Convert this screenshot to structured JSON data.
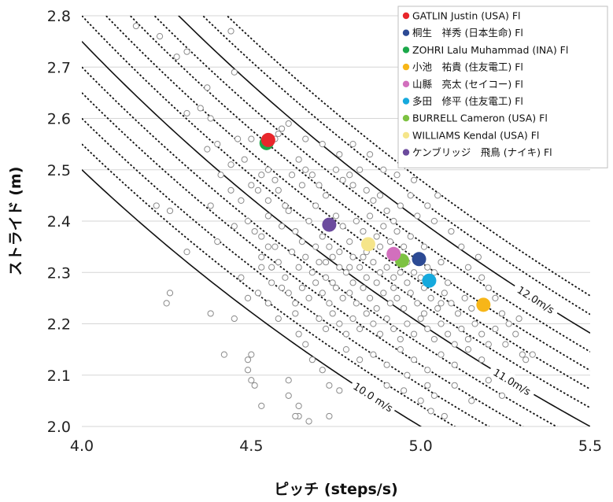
{
  "chart_data": {
    "type": "scatter",
    "title": "",
    "xlabel": "ピッチ (steps/s)",
    "ylabel": "ストライド (m)",
    "xlim": [
      4.0,
      5.5
    ],
    "ylim": [
      2.0,
      2.8
    ],
    "x_ticks": [
      "4.0",
      "4.5",
      "5.0",
      "5.5"
    ],
    "y_ticks": [
      "2.0",
      "2.1",
      "2.2",
      "2.3",
      "2.4",
      "2.5",
      "2.6",
      "2.7",
      "2.8"
    ],
    "grid": "horizontal",
    "legend_position": "top-right",
    "iso_speed_lines": {
      "solid_speeds": [
        10.0,
        11.0,
        12.0
      ],
      "dotted_speeds": [
        10.2,
        10.4,
        10.6,
        10.8,
        11.2,
        11.4,
        11.6,
        11.8,
        12.2,
        12.4
      ],
      "labels": [
        {
          "text": "10.0 m/s",
          "speed": 10.0,
          "x": 4.86
        },
        {
          "text": "11.0m/s",
          "speed": 11.0,
          "x": 5.27
        },
        {
          "text": "12.0m/s",
          "speed": 12.0,
          "x": 5.34
        }
      ]
    },
    "series": [
      {
        "name": "GATLIN Justin (USA) Fl",
        "color": "#e8262b",
        "x": 4.55,
        "y": 2.558
      },
      {
        "name": "桐生　祥秀 (日本生命) Fl",
        "color": "#2c4a94",
        "x": 4.995,
        "y": 2.326
      },
      {
        "name": "ZOHRI Lalu Muhammad (INA) Fl",
        "color": "#1ba84a",
        "x": 4.545,
        "y": 2.552
      },
      {
        "name": "小池　祐貴 (住友電工) Fl",
        "color": "#f7b618",
        "x": 5.185,
        "y": 2.237
      },
      {
        "name": "山縣　亮太 (セイコー) Fl",
        "color": "#d26fbd",
        "x": 4.92,
        "y": 2.336
      },
      {
        "name": "多田　修平 (住友電工) Fl",
        "color": "#16a9dd",
        "x": 5.025,
        "y": 2.284
      },
      {
        "name": "BURRELL Cameron (USA) Fl",
        "color": "#7dc242",
        "x": 4.945,
        "y": 2.323
      },
      {
        "name": "WILLIAMS Kendal (USA) Fl",
        "color": "#f5e58a",
        "x": 4.845,
        "y": 2.355
      },
      {
        "name": "ケンブリッジ　飛鳥 (ナイキ) Fl",
        "color": "#6b4a9d",
        "x": 4.73,
        "y": 2.393
      }
    ],
    "background_points": [
      [
        4.16,
        2.78
      ],
      [
        4.23,
        2.76
      ],
      [
        4.28,
        2.72
      ],
      [
        4.31,
        2.73
      ],
      [
        4.44,
        2.77
      ],
      [
        4.45,
        2.69
      ],
      [
        4.37,
        2.66
      ],
      [
        4.31,
        2.61
      ],
      [
        4.35,
        2.62
      ],
      [
        4.38,
        2.6
      ],
      [
        4.37,
        2.54
      ],
      [
        4.4,
        2.55
      ],
      [
        4.44,
        2.51
      ],
      [
        4.48,
        2.52
      ],
      [
        4.5,
        2.56
      ],
      [
        4.46,
        2.56
      ],
      [
        4.55,
        2.5
      ],
      [
        4.57,
        2.56
      ],
      [
        4.58,
        2.57
      ],
      [
        4.59,
        2.58
      ],
      [
        4.41,
        2.49
      ],
      [
        4.44,
        2.46
      ],
      [
        4.47,
        2.44
      ],
      [
        4.5,
        2.47
      ],
      [
        4.52,
        2.46
      ],
      [
        4.53,
        2.49
      ],
      [
        4.55,
        2.44
      ],
      [
        4.57,
        2.48
      ],
      [
        4.58,
        2.46
      ],
      [
        4.6,
        2.43
      ],
      [
        4.62,
        2.49
      ],
      [
        4.64,
        2.52
      ],
      [
        4.65,
        2.47
      ],
      [
        4.66,
        2.5
      ],
      [
        4.68,
        2.49
      ],
      [
        4.7,
        2.47
      ],
      [
        4.72,
        2.45
      ],
      [
        4.75,
        2.5
      ],
      [
        4.77,
        2.48
      ],
      [
        4.79,
        2.49
      ],
      [
        4.8,
        2.47
      ],
      [
        4.82,
        2.5
      ],
      [
        4.84,
        2.46
      ],
      [
        4.86,
        2.44
      ],
      [
        4.88,
        2.45
      ],
      [
        4.9,
        2.42
      ],
      [
        4.92,
        2.4
      ],
      [
        4.94,
        2.43
      ],
      [
        4.97,
        2.45
      ],
      [
        4.99,
        2.41
      ],
      [
        4.49,
        2.4
      ],
      [
        4.51,
        2.38
      ],
      [
        4.53,
        2.37
      ],
      [
        4.55,
        2.41
      ],
      [
        4.57,
        2.35
      ],
      [
        4.59,
        2.39
      ],
      [
        4.61,
        2.42
      ],
      [
        4.63,
        2.38
      ],
      [
        4.65,
        2.36
      ],
      [
        4.67,
        2.4
      ],
      [
        4.69,
        2.43
      ],
      [
        4.71,
        2.37
      ],
      [
        4.73,
        2.35
      ],
      [
        4.75,
        2.41
      ],
      [
        4.77,
        2.39
      ],
      [
        4.79,
        2.36
      ],
      [
        4.81,
        2.4
      ],
      [
        4.83,
        2.38
      ],
      [
        4.85,
        2.41
      ],
      [
        4.87,
        2.37
      ],
      [
        4.89,
        2.39
      ],
      [
        4.91,
        2.36
      ],
      [
        4.93,
        2.38
      ],
      [
        4.95,
        2.35
      ],
      [
        4.97,
        2.37
      ],
      [
        4.99,
        2.33
      ],
      [
        5.01,
        2.35
      ],
      [
        4.53,
        2.33
      ],
      [
        4.56,
        2.31
      ],
      [
        4.58,
        2.32
      ],
      [
        4.6,
        2.29
      ],
      [
        4.62,
        2.34
      ],
      [
        4.64,
        2.31
      ],
      [
        4.66,
        2.33
      ],
      [
        4.68,
        2.3
      ],
      [
        4.7,
        2.32
      ],
      [
        4.72,
        2.29
      ],
      [
        4.74,
        2.33
      ],
      [
        4.76,
        2.31
      ],
      [
        4.78,
        2.3
      ],
      [
        4.8,
        2.33
      ],
      [
        4.82,
        2.31
      ],
      [
        4.84,
        2.29
      ],
      [
        4.86,
        2.32
      ],
      [
        4.88,
        2.3
      ],
      [
        4.9,
        2.31
      ],
      [
        4.92,
        2.29
      ],
      [
        4.94,
        2.3
      ],
      [
        4.96,
        2.28
      ],
      [
        4.98,
        2.3
      ],
      [
        5.0,
        2.29
      ],
      [
        5.02,
        2.31
      ],
      [
        5.04,
        2.3
      ],
      [
        5.06,
        2.32
      ],
      [
        5.08,
        2.28
      ],
      [
        4.61,
        2.26
      ],
      [
        4.63,
        2.24
      ],
      [
        4.65,
        2.27
      ],
      [
        4.67,
        2.25
      ],
      [
        4.69,
        2.28
      ],
      [
        4.71,
        2.26
      ],
      [
        4.73,
        2.24
      ],
      [
        4.75,
        2.27
      ],
      [
        4.77,
        2.25
      ],
      [
        4.79,
        2.26
      ],
      [
        4.81,
        2.24
      ],
      [
        4.83,
        2.27
      ],
      [
        4.85,
        2.25
      ],
      [
        4.87,
        2.23
      ],
      [
        4.89,
        2.26
      ],
      [
        4.91,
        2.24
      ],
      [
        4.93,
        2.25
      ],
      [
        4.95,
        2.23
      ],
      [
        4.97,
        2.26
      ],
      [
        4.99,
        2.24
      ],
      [
        5.01,
        2.22
      ],
      [
        5.03,
        2.25
      ],
      [
        5.05,
        2.23
      ],
      [
        5.07,
        2.26
      ],
      [
        5.09,
        2.24
      ],
      [
        5.11,
        2.22
      ],
      [
        5.13,
        2.25
      ],
      [
        5.15,
        2.23
      ],
      [
        4.7,
        2.21
      ],
      [
        4.72,
        2.19
      ],
      [
        4.74,
        2.22
      ],
      [
        4.76,
        2.2
      ],
      [
        4.78,
        2.18
      ],
      [
        4.8,
        2.21
      ],
      [
        4.82,
        2.19
      ],
      [
        4.84,
        2.22
      ],
      [
        4.86,
        2.2
      ],
      [
        4.88,
        2.18
      ],
      [
        4.9,
        2.21
      ],
      [
        4.92,
        2.19
      ],
      [
        4.94,
        2.17
      ],
      [
        4.96,
        2.2
      ],
      [
        4.98,
        2.18
      ],
      [
        5.0,
        2.21
      ],
      [
        5.02,
        2.19
      ],
      [
        5.04,
        2.17
      ],
      [
        5.06,
        2.2
      ],
      [
        5.08,
        2.18
      ],
      [
        5.1,
        2.16
      ],
      [
        5.12,
        2.19
      ],
      [
        5.14,
        2.17
      ],
      [
        5.16,
        2.2
      ],
      [
        5.18,
        2.18
      ],
      [
        5.2,
        2.16
      ],
      [
        5.22,
        2.19
      ],
      [
        5.25,
        2.16
      ],
      [
        4.78,
        2.15
      ],
      [
        4.82,
        2.13
      ],
      [
        4.86,
        2.14
      ],
      [
        4.9,
        2.12
      ],
      [
        4.94,
        2.15
      ],
      [
        4.98,
        2.13
      ],
      [
        5.02,
        2.11
      ],
      [
        5.06,
        2.14
      ],
      [
        5.1,
        2.12
      ],
      [
        5.14,
        2.15
      ],
      [
        5.18,
        2.13
      ],
      [
        5.22,
        2.11
      ],
      [
        5.26,
        2.1
      ],
      [
        5.3,
        2.14
      ],
      [
        5.33,
        2.14
      ],
      [
        4.9,
        2.08
      ],
      [
        4.95,
        2.07
      ],
      [
        5.02,
        2.08
      ],
      [
        5.04,
        2.06
      ],
      [
        5.1,
        2.08
      ],
      [
        5.2,
        2.09
      ],
      [
        4.96,
        2.1
      ],
      [
        5.0,
        2.05
      ],
      [
        5.03,
        2.03
      ],
      [
        4.45,
        2.21
      ],
      [
        4.49,
        2.25
      ],
      [
        4.25,
        2.24
      ],
      [
        4.26,
        2.26
      ],
      [
        4.42,
        2.14
      ],
      [
        4.38,
        2.22
      ],
      [
        4.49,
        2.11
      ],
      [
        4.5,
        2.14
      ],
      [
        4.49,
        2.13
      ],
      [
        4.5,
        2.09
      ],
      [
        4.51,
        2.08
      ],
      [
        4.53,
        2.04
      ],
      [
        4.61,
        2.09
      ],
      [
        4.61,
        2.06
      ],
      [
        4.64,
        2.02
      ],
      [
        4.64,
        2.04
      ],
      [
        4.67,
        2.01
      ],
      [
        4.73,
        2.02
      ],
      [
        4.63,
        2.02
      ],
      [
        4.22,
        2.43
      ],
      [
        4.26,
        2.42
      ],
      [
        4.31,
        2.34
      ],
      [
        4.38,
        2.43
      ],
      [
        4.4,
        2.36
      ],
      [
        4.45,
        2.39
      ],
      [
        4.47,
        2.29
      ],
      [
        4.52,
        2.26
      ],
      [
        4.55,
        2.24
      ],
      [
        4.58,
        2.21
      ],
      [
        4.64,
        2.18
      ],
      [
        4.68,
        2.13
      ],
      [
        4.73,
        2.08
      ],
      [
        4.55,
        2.35
      ],
      [
        4.53,
        2.31
      ],
      [
        4.56,
        2.28
      ],
      [
        4.59,
        2.27
      ],
      [
        4.63,
        2.22
      ],
      [
        4.66,
        2.16
      ],
      [
        4.71,
        2.11
      ],
      [
        4.76,
        2.07
      ],
      [
        5.14,
        2.31
      ],
      [
        5.18,
        2.29
      ],
      [
        5.2,
        2.27
      ],
      [
        5.22,
        2.25
      ],
      [
        5.24,
        2.22
      ],
      [
        5.26,
        2.2
      ],
      [
        5.28,
        2.18
      ],
      [
        5.17,
        2.33
      ],
      [
        5.12,
        2.35
      ],
      [
        5.09,
        2.38
      ],
      [
        5.04,
        2.4
      ],
      [
        5.05,
        2.45
      ],
      [
        5.02,
        2.43
      ],
      [
        4.98,
        2.48
      ],
      [
        4.93,
        2.49
      ],
      [
        4.89,
        2.5
      ],
      [
        4.85,
        2.53
      ],
      [
        4.8,
        2.55
      ],
      [
        4.76,
        2.53
      ],
      [
        4.71,
        2.55
      ],
      [
        4.66,
        2.56
      ],
      [
        4.61,
        2.59
      ],
      [
        5.29,
        2.21
      ],
      [
        5.31,
        2.13
      ],
      [
        5.24,
        2.06
      ],
      [
        5.15,
        2.05
      ],
      [
        5.07,
        2.02
      ],
      [
        4.88,
        2.35
      ],
      [
        4.84,
        2.34
      ],
      [
        4.76,
        2.34
      ],
      [
        4.72,
        2.32
      ],
      [
        4.69,
        2.35
      ],
      [
        4.8,
        2.28
      ],
      [
        4.92,
        2.27
      ],
      [
        4.96,
        2.32
      ],
      [
        5.01,
        2.27
      ],
      [
        5.06,
        2.24
      ],
      [
        4.87,
        2.28
      ],
      [
        4.83,
        2.33
      ],
      [
        4.79,
        2.31
      ],
      [
        4.74,
        2.28
      ]
    ]
  }
}
